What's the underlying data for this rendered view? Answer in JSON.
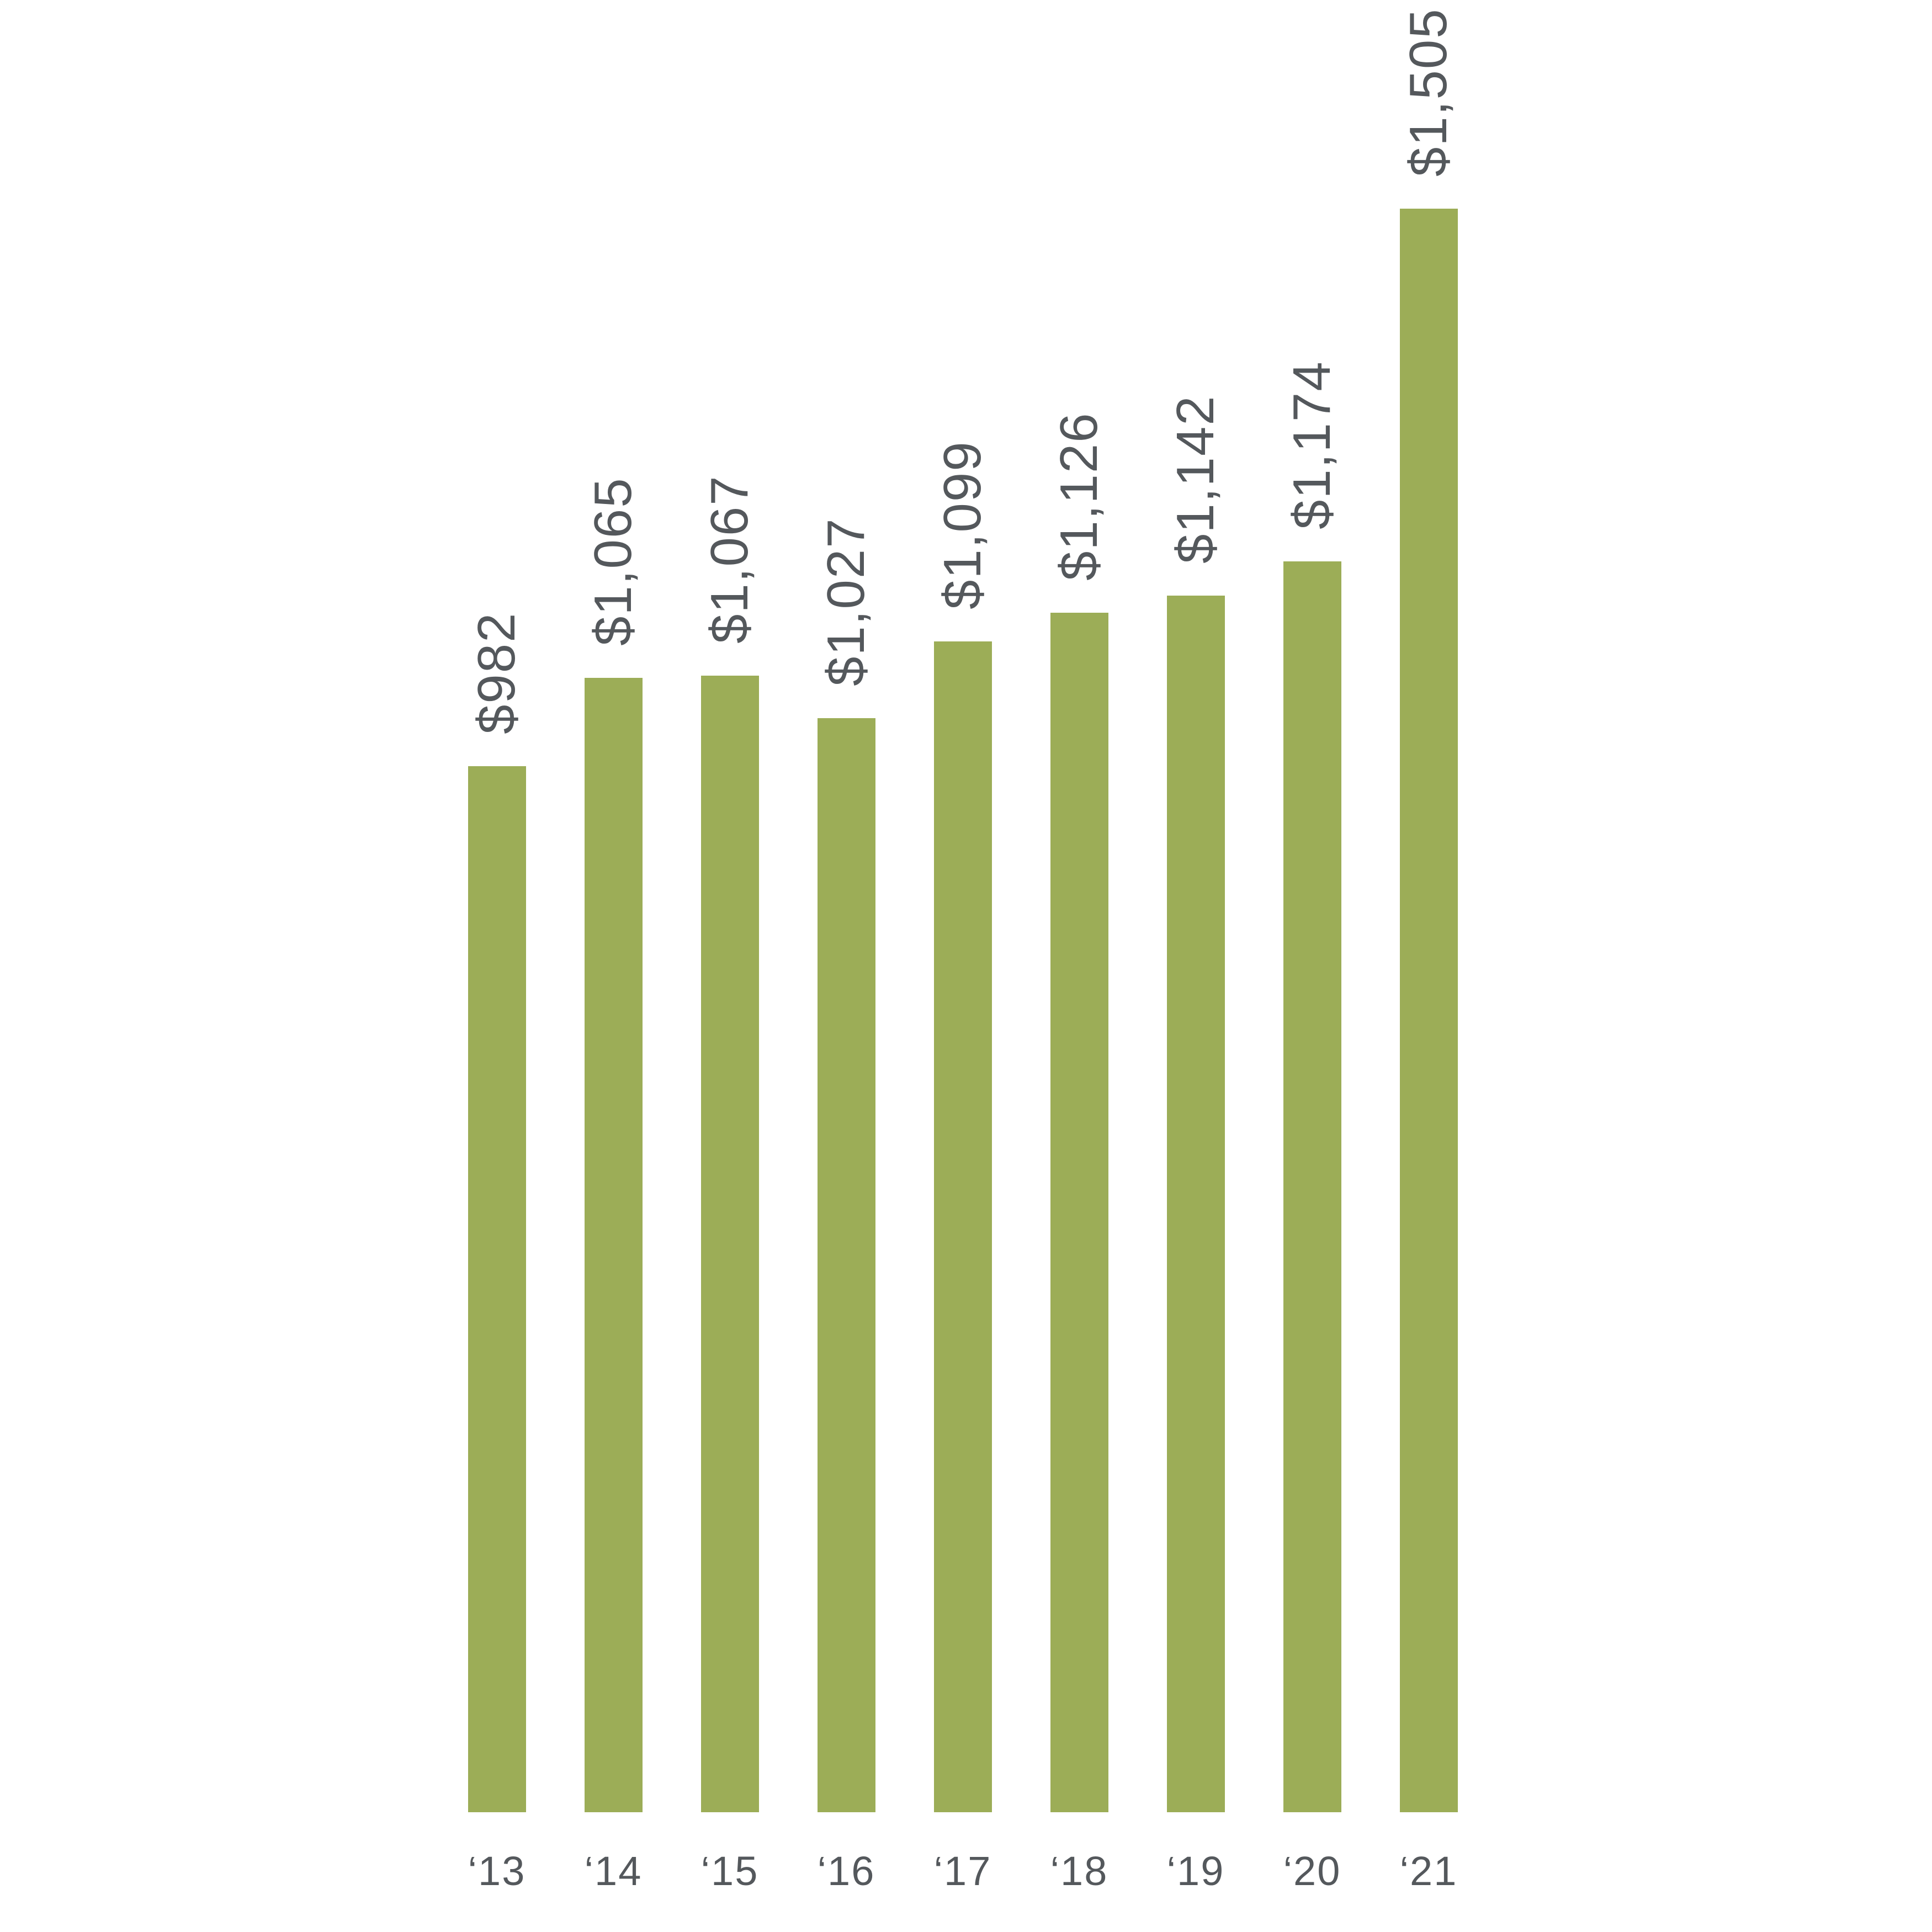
{
  "chart_data": {
    "type": "bar",
    "title": "",
    "xlabel": "",
    "ylabel": "",
    "categories": [
      "‘13",
      "‘14",
      "‘15",
      "‘16",
      "‘17",
      "‘18",
      "‘19",
      "‘20",
      "‘21"
    ],
    "values": [
      982,
      1065,
      1067,
      1027,
      1099,
      1126,
      1142,
      1174,
      1505
    ],
    "value_labels": [
      "$982",
      "$1,065",
      "$1,067",
      "$1,027",
      "$1,099",
      "$1,126",
      "$1,142",
      "$1,174",
      "$1,505"
    ],
    "series_name": "",
    "ylim": [
      0,
      1600
    ],
    "grid": false,
    "legend_position": "none",
    "value_label_rotation_deg": -90,
    "bar_color": "#9CAD57",
    "label_color": "#54585C",
    "background_color": "#FFFFFF"
  }
}
